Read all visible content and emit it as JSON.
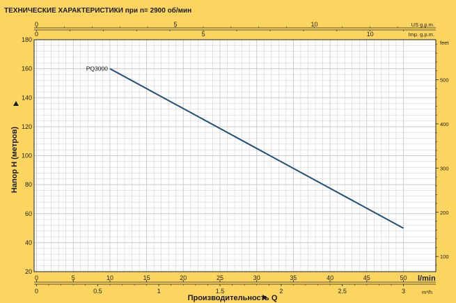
{
  "title": "ТЕХНИЧЕСКИЕ ХАРАКТЕРИСТИКИ при n= 2900 об/мин",
  "colors": {
    "background": "#fbd55f",
    "plot": "#ffffff",
    "grid": "#c9c9c9",
    "line": "#1f4f7a",
    "axis": "#222222"
  },
  "chart_data": {
    "type": "line",
    "title": "ТЕХНИЧЕСКИЕ ХАРАКТЕРИСТИКИ при n= 2900 об/мин",
    "xlabel": "Производительность Q",
    "ylabel": "Напор H (метров)",
    "x_unit_label": "l/min",
    "xlim": [
      0,
      50
    ],
    "ylim": [
      20,
      180
    ],
    "x_ticks": [
      0,
      5,
      10,
      15,
      20,
      25,
      30,
      35,
      40,
      45,
      50
    ],
    "y_ticks": [
      20,
      40,
      60,
      80,
      100,
      120,
      140,
      160,
      180
    ],
    "grid": true,
    "series": [
      {
        "name": "PQ3000",
        "x": [
          10,
          50
        ],
        "y": [
          160,
          50
        ]
      }
    ],
    "secondary_axes": {
      "bottom_m3h": {
        "unit": "m³/h",
        "ticks": [
          0,
          0.5,
          1,
          1.5,
          2,
          2.5,
          3
        ]
      },
      "top_us_gpm": {
        "unit": "US g.p.m.",
        "ticks": [
          0,
          5,
          10
        ]
      },
      "top_imp_gpm": {
        "unit": "Imp. g.p.m.",
        "ticks": [
          0,
          5,
          10
        ]
      },
      "right_feet": {
        "unit": "feet",
        "ticks": [
          100,
          200,
          300,
          400,
          500
        ]
      }
    }
  }
}
